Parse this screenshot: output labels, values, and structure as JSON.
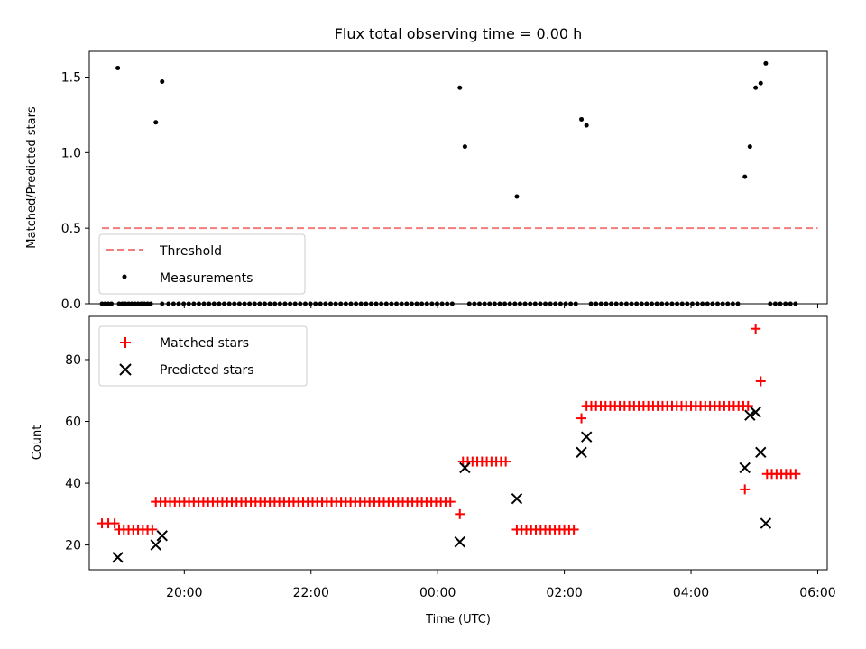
{
  "figure": {
    "title": "Flux total observing time = 0.00 h"
  },
  "chart_data": [
    {
      "type": "scatter",
      "ylabel": "Matched/Predicted stars",
      "xlabel": "",
      "xlim": [
        18.5,
        30.15
      ],
      "ylim": [
        0.0,
        1.67
      ],
      "yticks": [
        0.0,
        0.5,
        1.0,
        1.5
      ],
      "ytick_labels": [
        "0.0",
        "0.5",
        "1.0",
        "1.5"
      ],
      "xticks": [
        20,
        22,
        24,
        26,
        28,
        30
      ],
      "xtick_labels": [
        "",
        "",
        "",
        "",
        "",
        ""
      ],
      "grid": false,
      "legend": {
        "placement": "lower-left",
        "entries": [
          "Threshold",
          "Measurements"
        ]
      },
      "colors": {
        "threshold": "#f47c7c",
        "measurements": "#000000"
      },
      "threshold": {
        "name": "Threshold",
        "y": 0.5,
        "x_start": 18.7,
        "x_end": 30.0
      },
      "highlights": {
        "name": "Measurements",
        "points": [
          [
            18.95,
            1.56
          ],
          [
            19.55,
            1.2
          ],
          [
            19.65,
            1.47
          ],
          [
            24.35,
            1.43
          ],
          [
            24.43,
            1.04
          ],
          [
            25.25,
            0.71
          ],
          [
            26.27,
            1.22
          ],
          [
            26.35,
            1.18
          ],
          [
            28.85,
            0.84
          ],
          [
            28.93,
            1.04
          ],
          [
            29.02,
            1.43
          ],
          [
            29.1,
            1.46
          ],
          [
            29.18,
            1.59
          ]
        ]
      },
      "zero_runs": [
        [
          18.7,
          18.85,
          0.05
        ],
        [
          18.97,
          19.5,
          0.05
        ],
        [
          19.65,
          19.65,
          0.05
        ],
        [
          19.75,
          24.25,
          0.08
        ],
        [
          24.5,
          26.2,
          0.08
        ],
        [
          26.42,
          28.8,
          0.08
        ],
        [
          29.25,
          29.65,
          0.08
        ]
      ]
    },
    {
      "type": "scatter",
      "ylabel": "Count",
      "xlabel": "Time (UTC)",
      "xlim": [
        18.5,
        30.15
      ],
      "ylim": [
        12,
        94
      ],
      "yticks": [
        20,
        40,
        60,
        80
      ],
      "ytick_labels": [
        "20",
        "40",
        "60",
        "80"
      ],
      "xticks": [
        20,
        22,
        24,
        26,
        28,
        30
      ],
      "xtick_labels": [
        "20:00",
        "22:00",
        "00:00",
        "02:00",
        "04:00",
        "06:00"
      ],
      "grid": false,
      "legend": {
        "placement": "top-left",
        "entries": [
          "Matched stars",
          "Predicted stars"
        ]
      },
      "colors": {
        "matched": "#ff0000",
        "predicted": "#000000"
      },
      "matched_runs": [
        [
          18.7,
          18.9,
          27,
          0.1
        ],
        [
          18.97,
          19.5,
          25,
          0.075
        ],
        [
          19.55,
          24.23,
          34,
          0.075
        ],
        [
          24.4,
          25.08,
          47,
          0.075
        ],
        [
          25.25,
          26.2,
          25,
          0.075
        ],
        [
          26.35,
          28.95,
          65,
          0.075
        ],
        [
          29.2,
          29.65,
          43,
          0.075
        ]
      ],
      "matched_points": [
        [
          24.35,
          30
        ],
        [
          26.27,
          61
        ],
        [
          28.85,
          38
        ],
        [
          29.02,
          90
        ],
        [
          29.1,
          73
        ]
      ],
      "predicted_points": [
        [
          18.95,
          16
        ],
        [
          19.55,
          20
        ],
        [
          19.65,
          23
        ],
        [
          24.35,
          21
        ],
        [
          24.43,
          45
        ],
        [
          25.25,
          35
        ],
        [
          26.27,
          50
        ],
        [
          26.35,
          55
        ],
        [
          28.85,
          45
        ],
        [
          28.93,
          62
        ],
        [
          29.02,
          63
        ],
        [
          29.1,
          50
        ],
        [
          29.18,
          27
        ]
      ]
    }
  ]
}
